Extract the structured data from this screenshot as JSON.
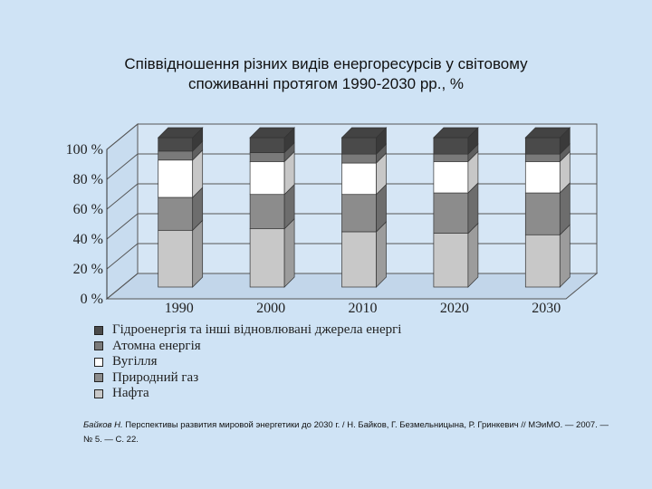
{
  "chart_data": {
    "type": "bar",
    "stacked": true,
    "style": "3d",
    "title": "Співвідношення різних видів енергоресурсів у світовому споживанні протягом 1990-2030 рр., %",
    "title_lines": [
      "Співвідношення різних видів енергоресурсів у світовому",
      "споживанні протягом 1990-2030 рр., %"
    ],
    "categories": [
      "1990",
      "2000",
      "2010",
      "2020",
      "2030"
    ],
    "yticks": [
      "0 %",
      "20 %",
      "40 %",
      "60 %",
      "80 %",
      "100 %"
    ],
    "ylim": [
      0,
      100
    ],
    "grid": true,
    "legend_position": "bottom-left",
    "series": [
      {
        "name": "Нафта",
        "color": "#c8c8c8",
        "values": [
          38,
          39,
          37,
          36,
          35
        ]
      },
      {
        "name": "Природний газ",
        "color": "#8c8c8c",
        "values": [
          22,
          23,
          25,
          27,
          28
        ]
      },
      {
        "name": "Вугілля",
        "color": "#ffffff",
        "values": [
          25,
          22,
          21,
          21,
          21
        ]
      },
      {
        "name": "Атомна енергія",
        "color": "#7a7a7a",
        "values": [
          6,
          6,
          6,
          5,
          5
        ]
      },
      {
        "name": "Гідроенергія та  інші відновлювані джерела енергі",
        "color": "#4a4a4a",
        "values": [
          9,
          10,
          11,
          11,
          11
        ]
      }
    ]
  },
  "legend_order": [
    "Гідроенергія та  інші відновлювані джерела енергі",
    "Атомна енергія",
    "Вугілля",
    "Природний газ",
    "Нафта"
  ],
  "legend_colors": [
    "#4a4a4a",
    "#7a7a7a",
    "#ffffff",
    "#8c8c8c",
    "#c8c8c8"
  ],
  "source": {
    "author": "Байков Н.",
    "text": " Перспективы развития мировой энергетики до 2030 г. / Н. Байков, Г. Безмельницына, Р. Гринкевич // МЭиМО. — 2007. — № 5. — С. 22."
  }
}
